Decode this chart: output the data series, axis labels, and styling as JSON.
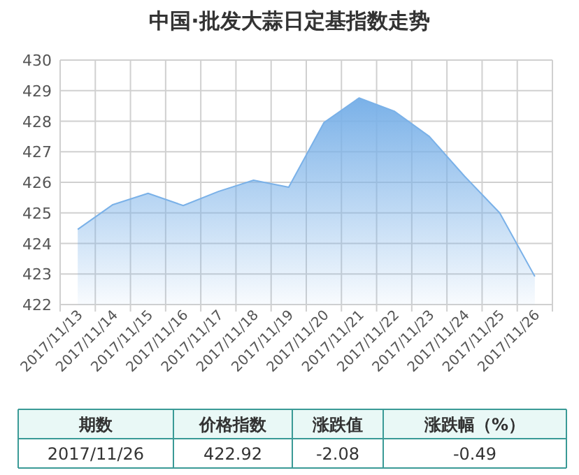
{
  "chart_data": {
    "type": "area",
    "title": "中国·批发大蒜日定基指数走势",
    "categories": [
      "2017/11/13",
      "2017/11/14",
      "2017/11/15",
      "2017/11/16",
      "2017/11/17",
      "2017/11/18",
      "2017/11/19",
      "2017/11/20",
      "2017/11/21",
      "2017/11/22",
      "2017/11/23",
      "2017/11/24",
      "2017/11/25",
      "2017/11/26"
    ],
    "series": [
      {
        "color": "#7ab1e8",
        "values": [
          424.46,
          425.27,
          425.64,
          425.24,
          425.7,
          426.07,
          425.84,
          427.95,
          428.76,
          428.33,
          427.5,
          426.2,
          425.0,
          422.92
        ]
      }
    ],
    "ylim": [
      422,
      430
    ],
    "yticks": [
      422,
      423,
      424,
      425,
      426,
      427,
      428,
      429,
      430
    ],
    "grid": true,
    "annotations": [
      "期数",
      "价格指数",
      "涨跌值",
      "涨跌幅（%）",
      "2017/11/26",
      "422.92",
      "-2.08",
      "-0.49"
    ]
  }
}
